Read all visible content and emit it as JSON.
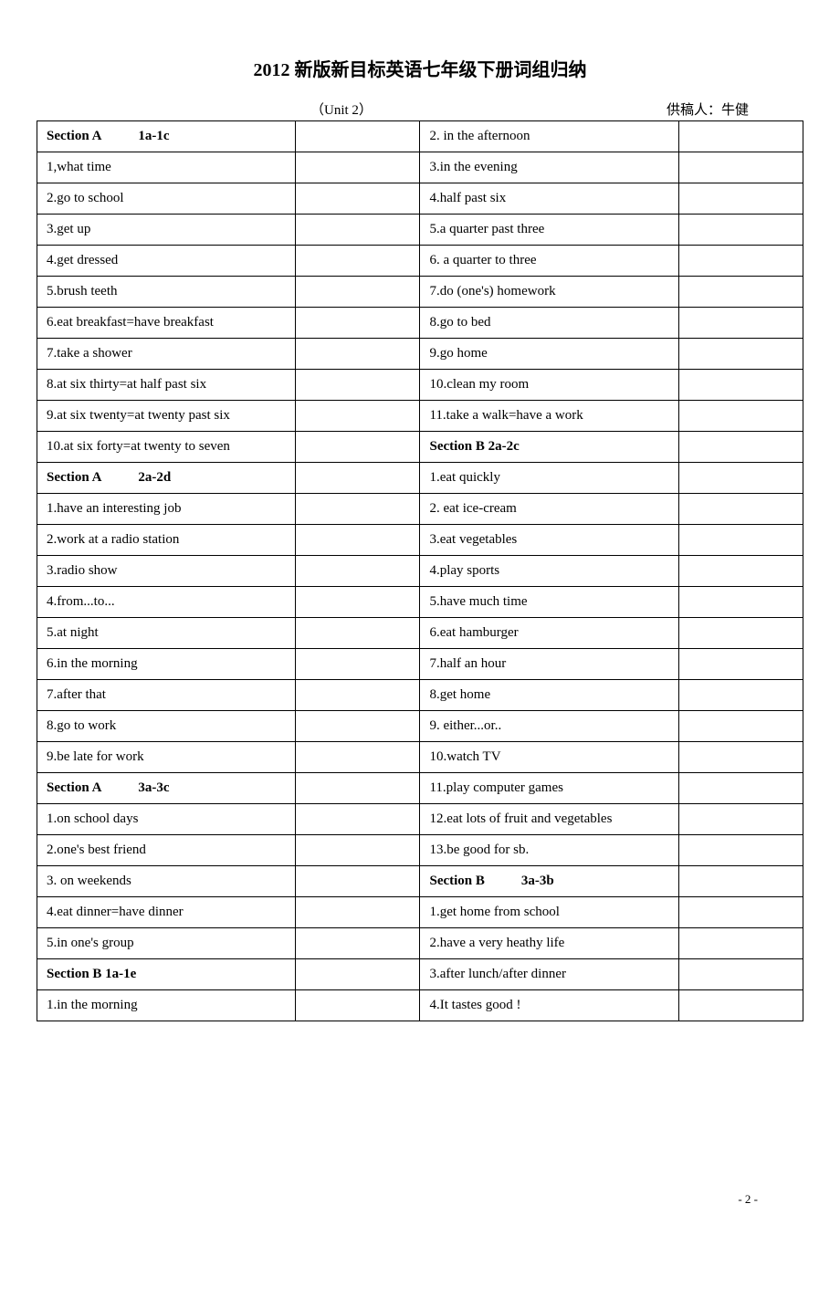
{
  "title": "2012 新版新目标英语七年级下册词组归纳",
  "unit": "（Unit 2）",
  "contributor": "供稿人：牛健",
  "pageNumber": "- 2 -",
  "leftColumn": [
    {
      "text": "Section A",
      "sub": "1a-1c",
      "header": true
    },
    {
      "text": "1,what time"
    },
    {
      "text": "2.go to school"
    },
    {
      "text": "3.get up"
    },
    {
      "text": "4.get dressed"
    },
    {
      "text": "5.brush teeth"
    },
    {
      "text": "6.eat breakfast=have breakfast"
    },
    {
      "text": "7.take a shower"
    },
    {
      "text": "8.at six thirty=at half past six"
    },
    {
      "text": "9.at six twenty=at twenty past six"
    },
    {
      "text": "10.at six forty=at twenty to seven"
    },
    {
      "text": "Section A",
      "sub": "2a-2d",
      "header": true
    },
    {
      "text": "1.have an interesting job"
    },
    {
      "text": "2.work at a radio station"
    },
    {
      "text": "3.radio show"
    },
    {
      "text": "4.from...to..."
    },
    {
      "text": "5.at night"
    },
    {
      "text": "6.in the morning"
    },
    {
      "text": "7.after that"
    },
    {
      "text": "8.go to work"
    },
    {
      "text": "9.be late for work"
    },
    {
      "text": "Section A",
      "sub": "3a-3c",
      "header": true
    },
    {
      "text": "1.on school days"
    },
    {
      "text": "2.one's best friend"
    },
    {
      "text": "3. on weekends"
    },
    {
      "text": "4.eat dinner=have dinner"
    },
    {
      "text": "5.in one's group"
    },
    {
      "text": "Section B 1a-1e",
      "header": true
    },
    {
      "text": "1.in the morning"
    }
  ],
  "rightColumn": [
    {
      "text": "2. in the afternoon"
    },
    {
      "text": "3.in the evening"
    },
    {
      "text": "4.half past six"
    },
    {
      "text": "5.a quarter past three"
    },
    {
      "text": "6. a quarter to three"
    },
    {
      "text": "7.do (one's) homework"
    },
    {
      "text": "8.go to bed"
    },
    {
      "text": "9.go home"
    },
    {
      "text": "10.clean my room"
    },
    {
      "text": "11.take a walk=have a work"
    },
    {
      "text": "Section B 2a-2c",
      "header": true
    },
    {
      "text": "1.eat quickly"
    },
    {
      "text": "2. eat ice-cream"
    },
    {
      "text": "3.eat vegetables"
    },
    {
      "text": "4.play sports"
    },
    {
      "text": "5.have much time"
    },
    {
      "text": "6.eat hamburger"
    },
    {
      "text": "7.half an hour"
    },
    {
      "text": "8.get home"
    },
    {
      "text": "9. either...or.."
    },
    {
      "text": "10.watch TV"
    },
    {
      "text": "11.play computer games"
    },
    {
      "text": "12.eat lots of fruit and vegetables"
    },
    {
      "text": "13.be good for sb."
    },
    {
      "text": "Section B",
      "sub": "3a-3b",
      "header": true
    },
    {
      "text": "1.get home from school"
    },
    {
      "text": "2.have a very heathy life"
    },
    {
      "text": "3.after lunch/after dinner"
    },
    {
      "text": "4.It tastes good !"
    }
  ]
}
